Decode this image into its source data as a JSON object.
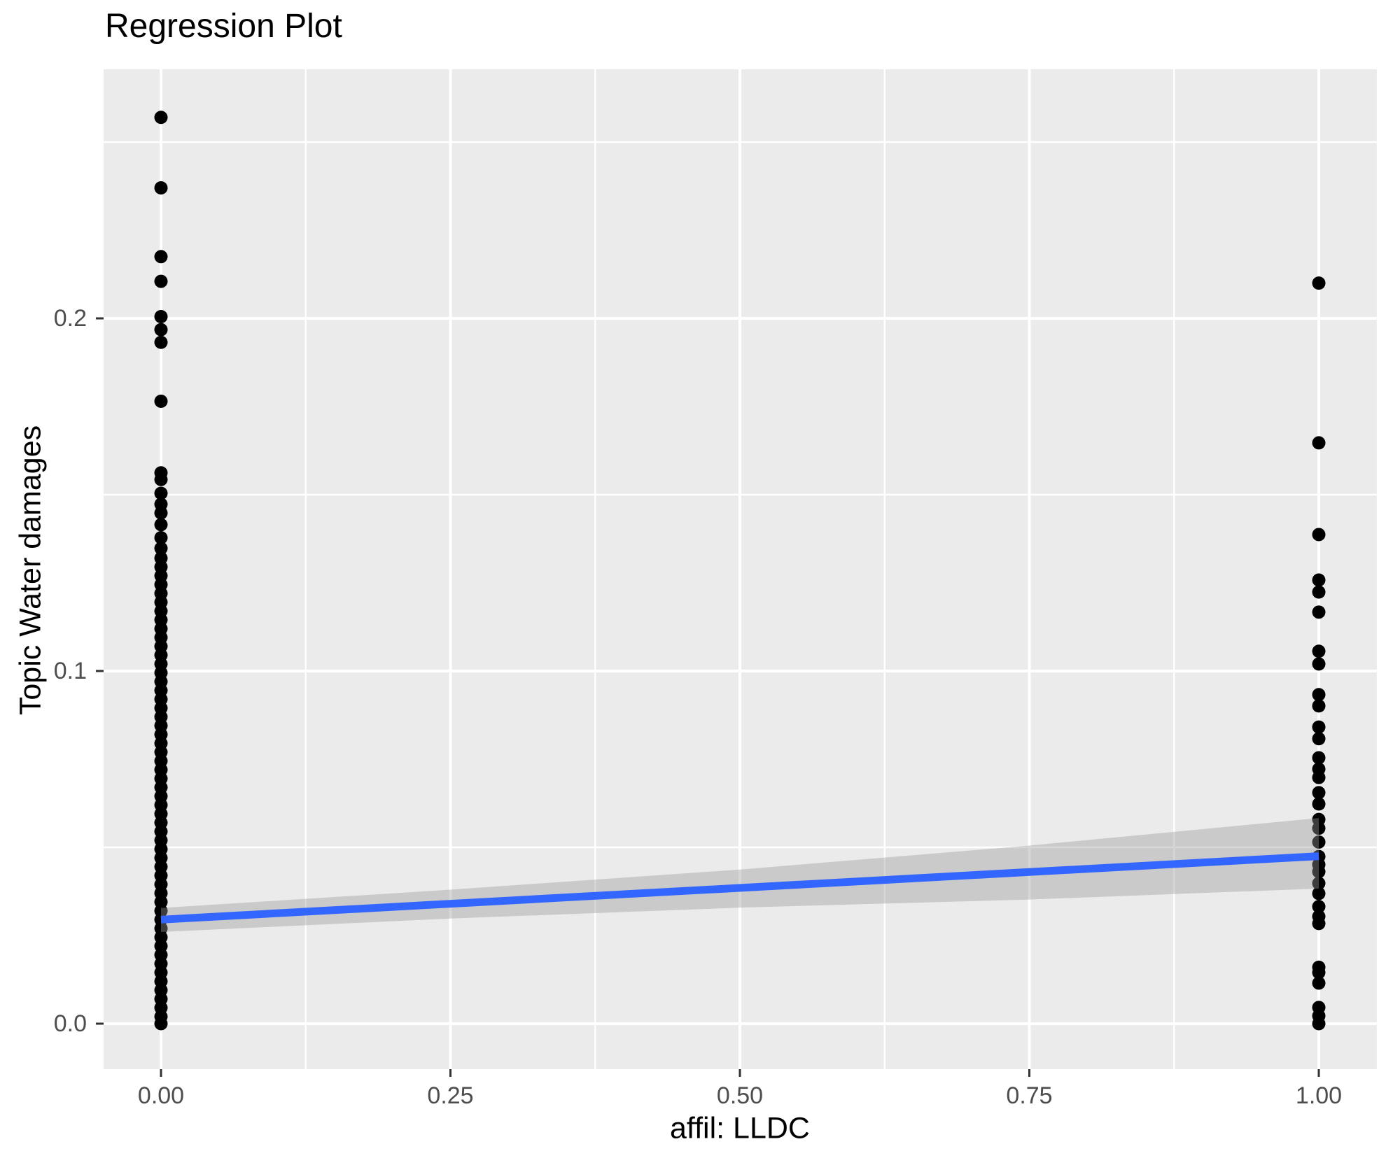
{
  "chart_data": {
    "type": "scatter",
    "title": "Regression Plot",
    "xlabel": "affil: LLDC",
    "ylabel": "Topic Water damages",
    "grid": true,
    "legend": "none",
    "x_axis": {
      "tick_labels": [
        "0.00",
        "0.25",
        "0.50",
        "0.75",
        "1.00"
      ],
      "tick_values": [
        0,
        0.25,
        0.5,
        0.75,
        1
      ],
      "minor_values": [
        0.125,
        0.375,
        0.625,
        0.875
      ],
      "range": [
        -0.0496,
        1.0502
      ]
    },
    "y_axis": {
      "tick_labels": [
        "0.0",
        "0.1",
        "0.2"
      ],
      "tick_values": [
        0,
        0.1,
        0.2
      ],
      "minor_values": [
        0.05,
        0.15,
        0.25
      ],
      "range": [
        -0.0115,
        0.2705
      ]
    },
    "styles": {
      "panel_bg": "#EBEBEB",
      "grid_color": "#FFFFFF",
      "point_color": "#000000",
      "line_color": "#3366FF",
      "band_color": "#999999",
      "band_opacity": 0.4,
      "tick_color": "#333333",
      "tick_label_color": "#4D4D4D",
      "title_color": "#000000"
    },
    "series": [
      {
        "name": "affil LLDC = 0 observations",
        "x": 0,
        "y_values": [
          0.257,
          0.237,
          0.2175,
          0.2105,
          0.2005,
          0.1968,
          0.1932,
          0.1765,
          0.1562,
          0.1543,
          0.1504,
          0.1473,
          0.1448,
          0.1415,
          0.1378,
          0.1348,
          0.132,
          0.1295,
          0.127,
          0.1245,
          0.122,
          0.1195,
          0.117,
          0.1145,
          0.112,
          0.1095,
          0.107,
          0.1045,
          0.102,
          0.0995,
          0.097,
          0.0945,
          0.092,
          0.0895,
          0.087,
          0.0845,
          0.082,
          0.0795,
          0.077,
          0.0745,
          0.072,
          0.0695,
          0.067,
          0.0645,
          0.062,
          0.0595,
          0.057,
          0.0545,
          0.052,
          0.0495,
          0.047,
          0.0445,
          0.042,
          0.0395,
          0.037,
          0.0345,
          0.032,
          0.0295,
          0.027,
          0.0245,
          0.022,
          0.0195,
          0.017,
          0.0145,
          0.012,
          0.0095,
          0.007,
          0.0045,
          0.002,
          0.0
        ]
      },
      {
        "name": "affil LLDC = 1 observations",
        "x": 1,
        "y_values": [
          0.21,
          0.1647,
          0.1387,
          0.1258,
          0.1224,
          0.1167,
          0.1056,
          0.102,
          0.0933,
          0.0901,
          0.0841,
          0.0808,
          0.0754,
          0.0722,
          0.0698,
          0.0655,
          0.0623,
          0.0579,
          0.0554,
          0.0515,
          0.0474,
          0.0451,
          0.0431,
          0.0398,
          0.0369,
          0.0332,
          0.0304,
          0.0284,
          0.016,
          0.0145,
          0.0115,
          0.0046,
          0.0022,
          0.0
        ]
      }
    ],
    "regression_line": {
      "x": [
        0,
        1
      ],
      "y": [
        0.0295,
        0.0475
      ]
    },
    "confidence_band": {
      "x": [
        0,
        0.25,
        0.5,
        0.75,
        1
      ],
      "upper": [
        0.0328,
        0.038,
        0.0437,
        0.0505,
        0.0583
      ],
      "lower": [
        0.026,
        0.0298,
        0.0329,
        0.0352,
        0.0383
      ]
    }
  }
}
